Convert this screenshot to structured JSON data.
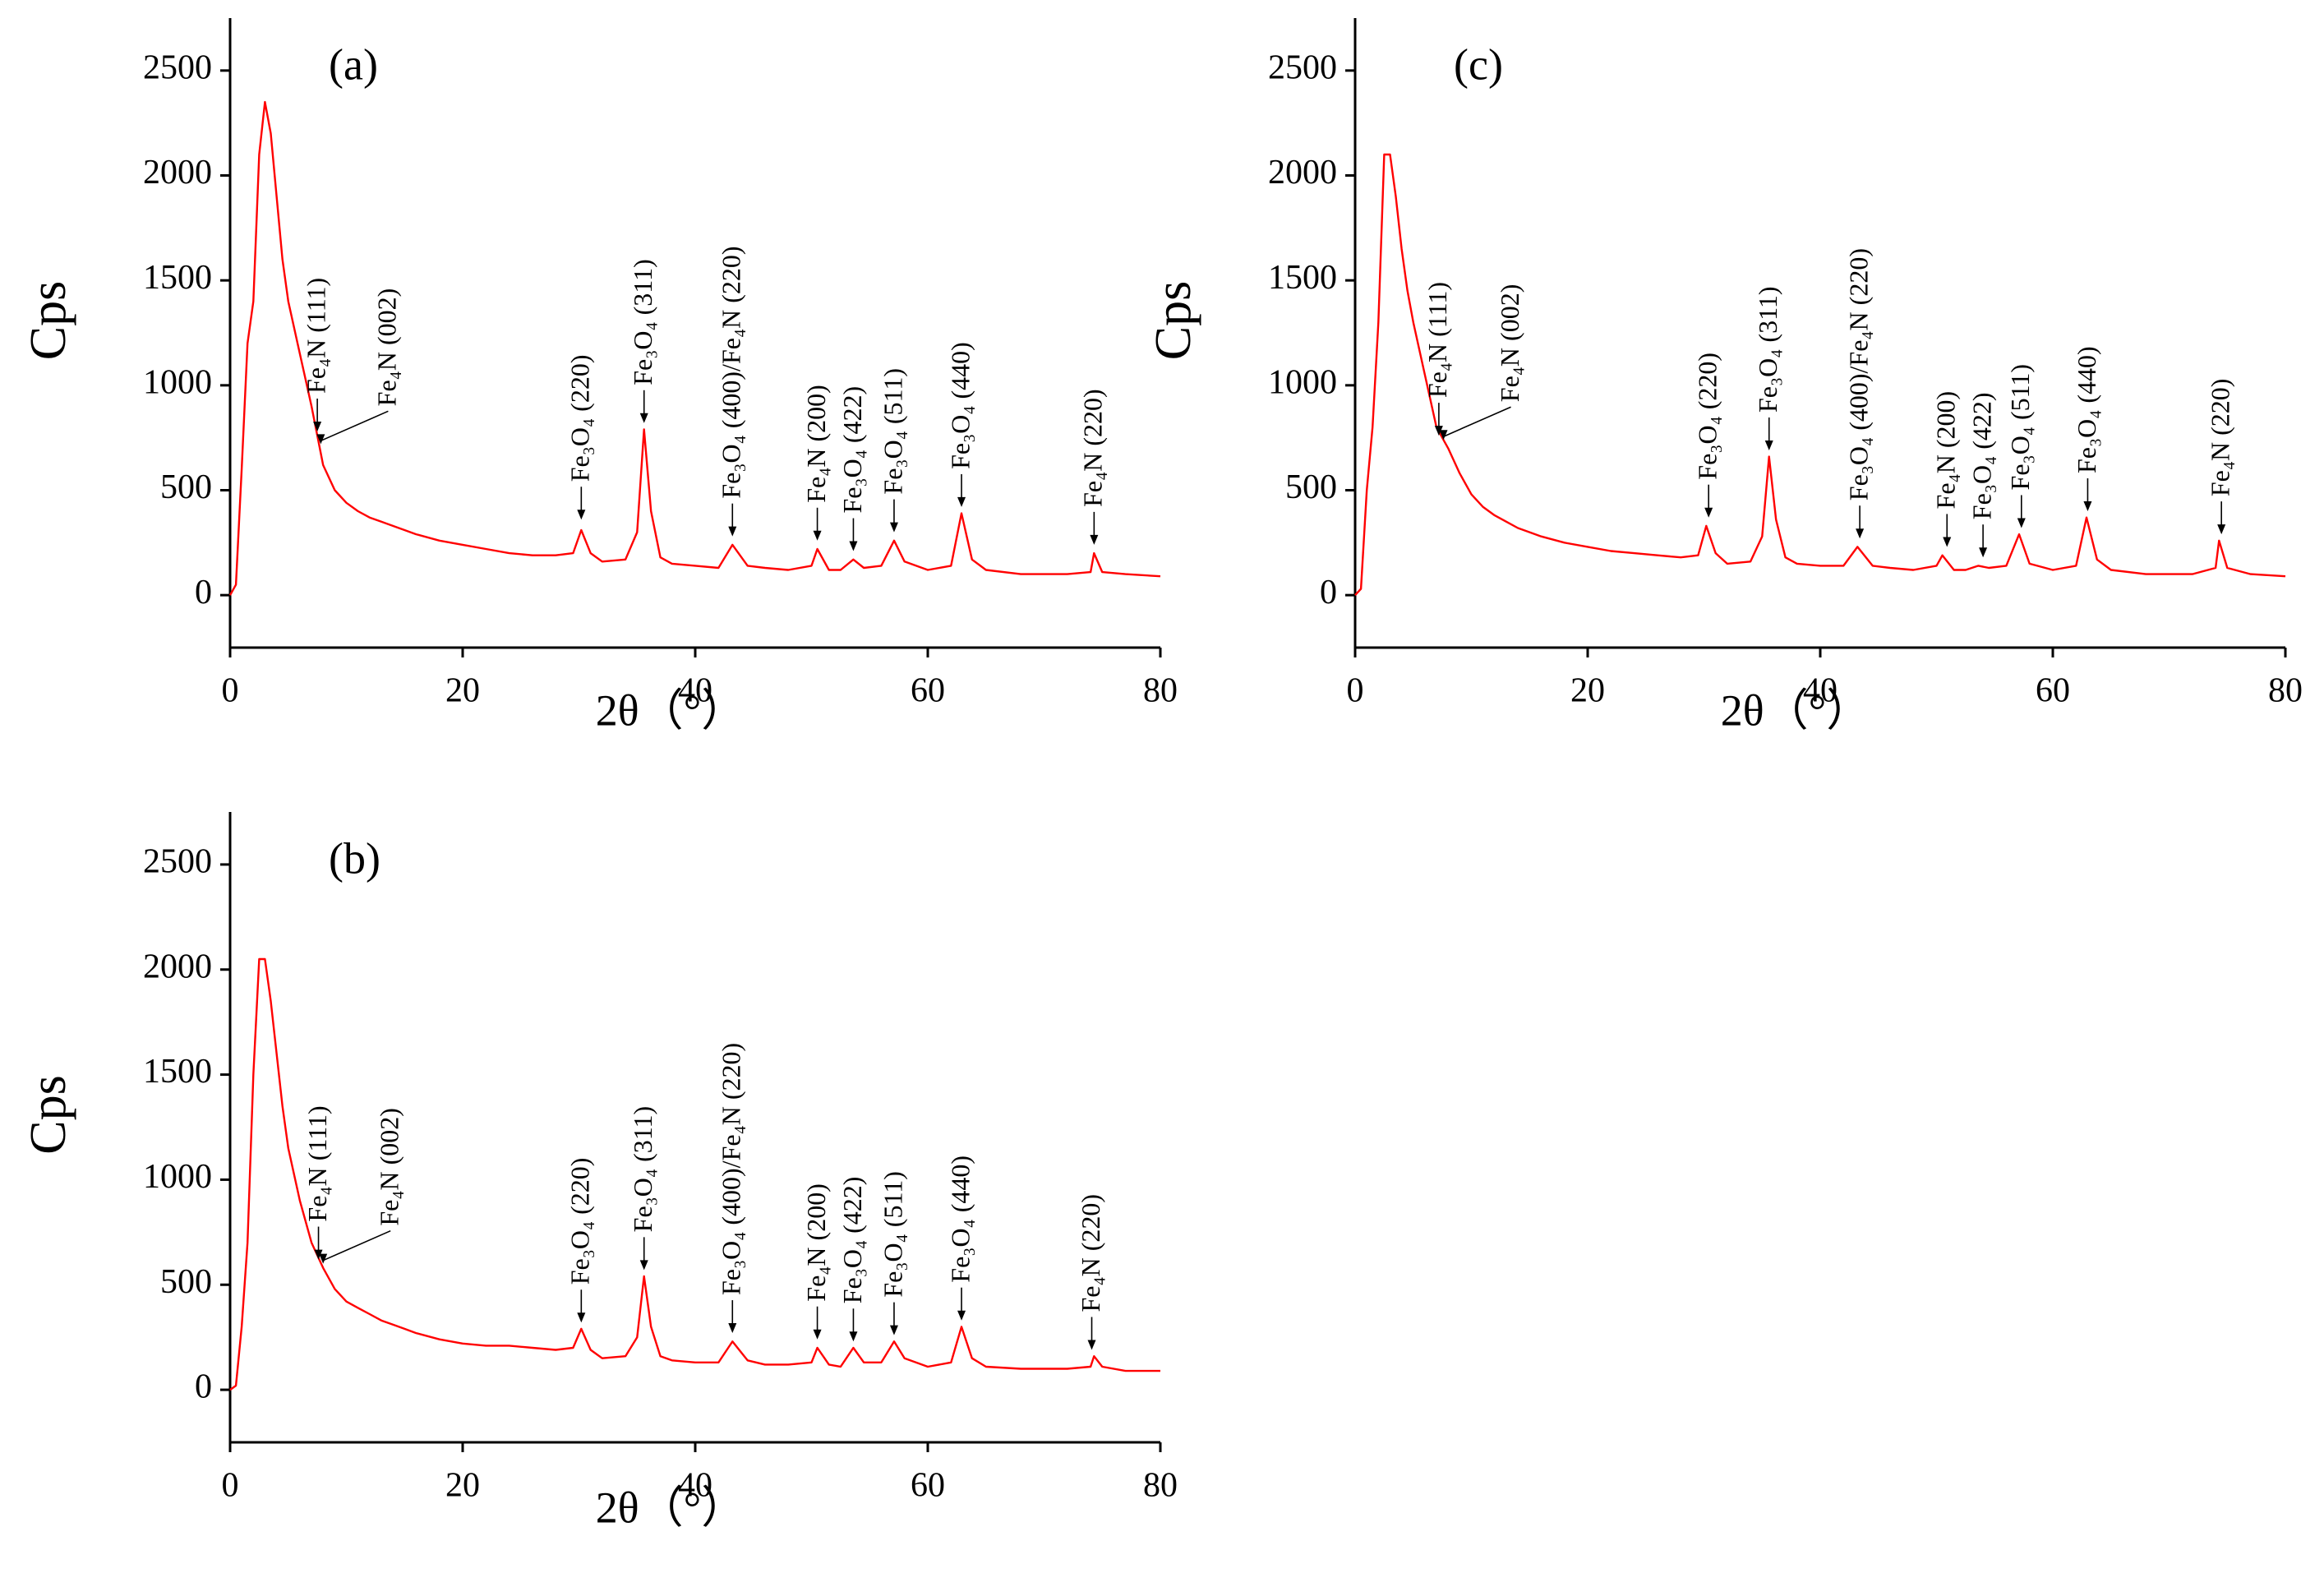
{
  "chart_data": [
    {
      "type": "line",
      "title": "(a)",
      "x_label": "2θ（°）",
      "y_label": "Cps",
      "xlim": [
        0,
        80
      ],
      "xticks": [
        0,
        20,
        40,
        60,
        80
      ],
      "ylim": [
        -250,
        2750
      ],
      "yticks": [
        0,
        500,
        1000,
        1500,
        2000,
        2500
      ],
      "color": "#ff0000",
      "x": [
        0,
        0.5,
        1,
        1.5,
        2,
        2.5,
        3,
        3.5,
        4,
        4.5,
        5,
        6,
        7,
        8,
        9,
        10,
        11,
        12,
        13,
        14,
        15,
        16,
        18,
        20,
        22,
        24,
        26,
        28,
        29.5,
        30.2,
        31,
        32,
        34,
        35,
        35.6,
        36.2,
        37,
        38,
        40,
        42,
        43.2,
        44.5,
        46,
        48,
        50,
        50.5,
        51.5,
        52.5,
        53.6,
        54.5,
        56,
        57.1,
        58,
        60,
        62,
        62.9,
        63.8,
        65,
        68,
        70,
        72,
        74,
        74.3,
        75,
        77,
        80
      ],
      "values": [
        0,
        50,
        600,
        1200,
        1400,
        2100,
        2350,
        2200,
        1900,
        1600,
        1400,
        1150,
        900,
        620,
        500,
        440,
        400,
        370,
        350,
        330,
        310,
        290,
        260,
        240,
        220,
        200,
        190,
        190,
        200,
        310,
        200,
        160,
        170,
        300,
        790,
        400,
        180,
        150,
        140,
        130,
        240,
        140,
        130,
        120,
        140,
        220,
        120,
        120,
        170,
        130,
        140,
        260,
        160,
        120,
        140,
        390,
        170,
        120,
        100,
        100,
        100,
        110,
        200,
        110,
        100,
        90
      ],
      "annotations": [
        {
          "text": "Fe₄N (111)",
          "x": 7.5,
          "y": 780
        },
        {
          "text": "Fe₄N (002)",
          "x": 7.8,
          "y": 720
        },
        {
          "text": "Fe₃O₄ (220)",
          "x": 30.2,
          "y": 360
        },
        {
          "text": "Fe₃O₄ (311)",
          "x": 35.6,
          "y": 820
        },
        {
          "text": "Fe₃O₄ (400)/Fe₄N (220)",
          "x": 43.2,
          "y": 280
        },
        {
          "text": "Fe₄N (200)",
          "x": 50.5,
          "y": 260
        },
        {
          "text": "Fe₃O₄ (422)",
          "x": 53.6,
          "y": 210
        },
        {
          "text": "Fe₃O₄ (511)",
          "x": 57.1,
          "y": 300
        },
        {
          "text": "Fe₃O₄ (440)",
          "x": 62.9,
          "y": 420
        },
        {
          "text": "Fe₄N (220)",
          "x": 74.3,
          "y": 240
        }
      ]
    },
    {
      "type": "line",
      "title": "(c)",
      "x_label": "2θ（°）",
      "y_label": "Cps",
      "xlim": [
        0,
        80
      ],
      "xticks": [
        0,
        20,
        40,
        60,
        80
      ],
      "ylim": [
        -250,
        2750
      ],
      "yticks": [
        0,
        500,
        1000,
        1500,
        2000,
        2500
      ],
      "color": "#ff0000",
      "x": [
        0,
        0.5,
        1,
        1.5,
        2,
        2.5,
        3,
        3.5,
        4,
        4.5,
        5,
        6,
        7,
        8,
        9,
        10,
        11,
        12,
        13,
        14,
        15,
        16,
        18,
        20,
        22,
        24,
        26,
        28,
        29.5,
        30.2,
        31,
        32,
        34,
        35,
        35.6,
        36.2,
        37,
        38,
        40,
        42,
        43.2,
        44.5,
        46,
        48,
        50,
        50.5,
        51.5,
        52.5,
        53.6,
        54.5,
        56,
        57.1,
        58,
        60,
        62,
        62.9,
        63.8,
        65,
        68,
        70,
        72,
        74,
        74.3,
        75,
        77,
        80
      ],
      "values": [
        0,
        30,
        500,
        800,
        1300,
        2100,
        2100,
        1900,
        1650,
        1450,
        1300,
        1050,
        800,
        700,
        580,
        480,
        420,
        380,
        350,
        320,
        300,
        280,
        250,
        230,
        210,
        200,
        190,
        180,
        190,
        330,
        200,
        150,
        160,
        280,
        660,
        360,
        180,
        150,
        140,
        140,
        230,
        140,
        130,
        120,
        140,
        190,
        120,
        120,
        140,
        130,
        140,
        290,
        150,
        120,
        140,
        370,
        170,
        120,
        100,
        100,
        100,
        130,
        260,
        130,
        100,
        90
      ],
      "annotations": [
        {
          "text": "Fe₄N (111)",
          "x": 7.2,
          "y": 760
        },
        {
          "text": "Fe₄N (002)",
          "x": 7.6,
          "y": 740
        },
        {
          "text": "Fe₃O₄ (220)",
          "x": 30.4,
          "y": 370
        },
        {
          "text": "Fe₃O₄ (311)",
          "x": 35.6,
          "y": 690
        },
        {
          "text": "Fe₃O₄ (400)/Fe₄N (220)",
          "x": 43.4,
          "y": 270
        },
        {
          "text": "Fe₄N (200)",
          "x": 50.9,
          "y": 230
        },
        {
          "text": "Fe₃O₄ (422)",
          "x": 54.0,
          "y": 180
        },
        {
          "text": "Fe₃O₄ (511)",
          "x": 57.3,
          "y": 320
        },
        {
          "text": "Fe₃O₄ (440)",
          "x": 63.0,
          "y": 400
        },
        {
          "text": "Fe₄N (220)",
          "x": 74.5,
          "y": 290
        }
      ]
    },
    {
      "type": "line",
      "title": "(b)",
      "x_label": "2θ（°）",
      "y_label": "Cps",
      "xlim": [
        0,
        80
      ],
      "xticks": [
        0,
        20,
        40,
        60,
        80
      ],
      "ylim": [
        -250,
        2750
      ],
      "yticks": [
        0,
        500,
        1000,
        1500,
        2000,
        2500
      ],
      "color": "#ff0000",
      "x": [
        0,
        0.5,
        1,
        1.5,
        2,
        2.5,
        3,
        3.5,
        4,
        4.5,
        5,
        6,
        7,
        8,
        9,
        10,
        11,
        12,
        13,
        14,
        15,
        16,
        18,
        20,
        22,
        24,
        26,
        28,
        29.5,
        30.2,
        31,
        32,
        34,
        35,
        35.6,
        36.2,
        37,
        38,
        40,
        42,
        43.2,
        44.5,
        46,
        48,
        50,
        50.5,
        51.5,
        52.5,
        53.6,
        54.5,
        56,
        57.1,
        58,
        60,
        62,
        62.9,
        63.8,
        65,
        68,
        70,
        72,
        74,
        74.3,
        75,
        77,
        80
      ],
      "values": [
        0,
        20,
        300,
        700,
        1500,
        2050,
        2050,
        1850,
        1600,
        1350,
        1150,
        900,
        700,
        580,
        480,
        420,
        390,
        360,
        330,
        310,
        290,
        270,
        240,
        220,
        210,
        210,
        200,
        190,
        200,
        290,
        190,
        150,
        160,
        250,
        540,
        300,
        160,
        140,
        130,
        130,
        230,
        140,
        120,
        120,
        130,
        200,
        120,
        110,
        200,
        130,
        130,
        230,
        150,
        110,
        130,
        300,
        150,
        110,
        100,
        100,
        100,
        110,
        160,
        110,
        90,
        90
      ],
      "annotations": [
        {
          "text": "Fe₄N (111)",
          "x": 7.6,
          "y": 620
        },
        {
          "text": "Fe₄N (002)",
          "x": 8.0,
          "y": 600
        },
        {
          "text": "Fe₃O₄ (220)",
          "x": 30.2,
          "y": 320
        },
        {
          "text": "Fe₃O₄ (311)",
          "x": 35.6,
          "y": 570
        },
        {
          "text": "Fe₃O₄ (400)/Fe₄N (220)",
          "x": 43.2,
          "y": 270
        },
        {
          "text": "Fe₄N (200)",
          "x": 50.5,
          "y": 240
        },
        {
          "text": "Fe₃O₄ (422)",
          "x": 53.6,
          "y": 230
        },
        {
          "text": "Fe₃O₄ (511)",
          "x": 57.1,
          "y": 260
        },
        {
          "text": "Fe₃O₄ (440)",
          "x": 62.9,
          "y": 330
        },
        {
          "text": "Fe₄N (220)",
          "x": 74.1,
          "y": 190
        }
      ]
    }
  ]
}
